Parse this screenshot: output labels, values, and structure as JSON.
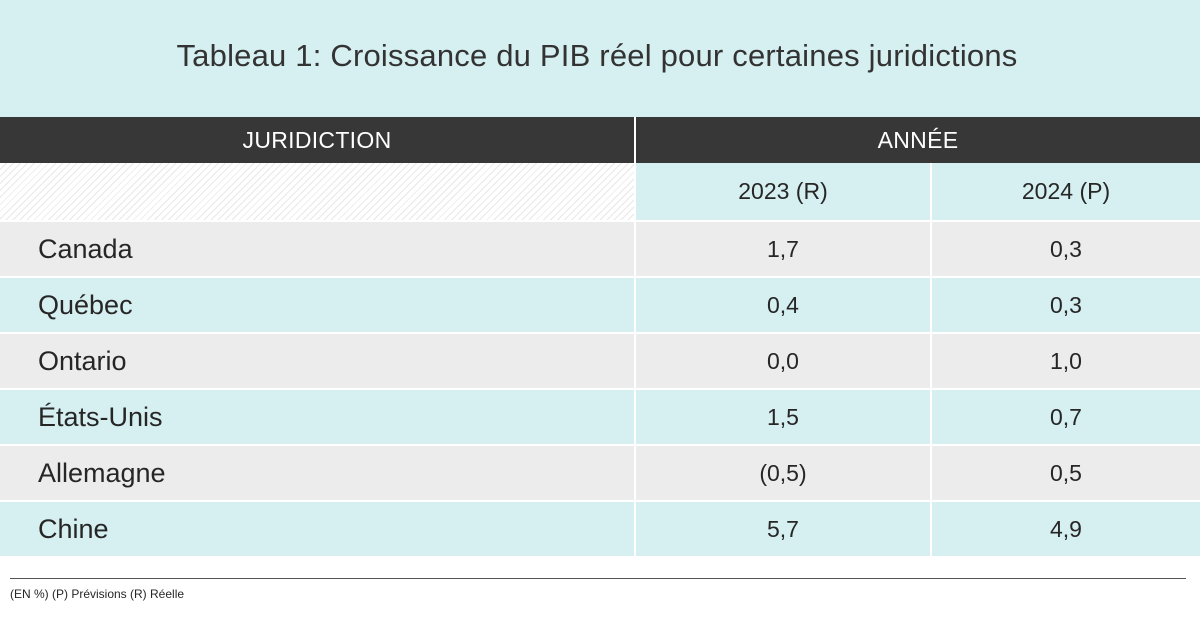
{
  "title": "Tableau 1: Croissance du PIB réel pour certaines juridictions",
  "header": {
    "jurisdiction": "JURIDICTION",
    "year": "ANNÉE"
  },
  "subheader": {
    "year1": "2023 (R)",
    "year2": "2024 (P)"
  },
  "rows": [
    {
      "name": "Canada",
      "v2023": "1,7",
      "v2024": "0,3"
    },
    {
      "name": "Québec",
      "v2023": "0,4",
      "v2024": "0,3"
    },
    {
      "name": "Ontario",
      "v2023": "0,0",
      "v2024": "1,0"
    },
    {
      "name": "États-Unis",
      "v2023": "1,5",
      "v2024": "0,7"
    },
    {
      "name": "Allemagne",
      "v2023": "(0,5)",
      "v2024": "0,5"
    },
    {
      "name": "Chine",
      "v2023": "5,7",
      "v2024": "4,9"
    }
  ],
  "footnote": "(EN %)  (P) Prévisions (R) Réelle",
  "colors": {
    "band": "#d6eff1",
    "header": "#373737",
    "row_alt": "#ececec"
  }
}
